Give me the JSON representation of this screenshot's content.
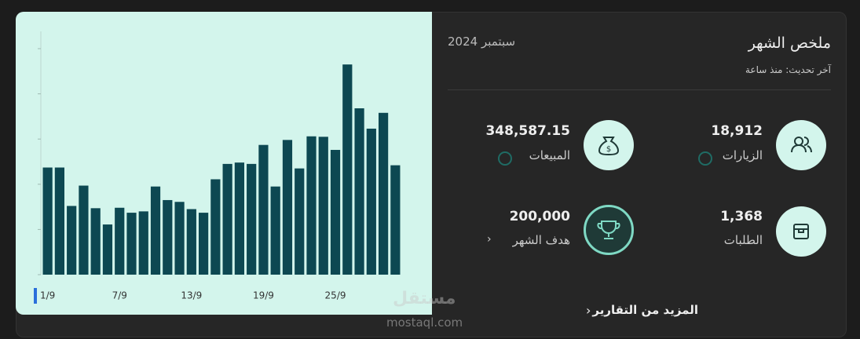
{
  "chart_data": {
    "type": "bar",
    "categories": [
      "1/9",
      null,
      null,
      null,
      null,
      null,
      "7/9",
      null,
      null,
      null,
      null,
      null,
      "13/9",
      null,
      null,
      null,
      null,
      null,
      "19/9",
      null,
      null,
      null,
      null,
      null,
      "25/9",
      null,
      null,
      null,
      null,
      null
    ],
    "values": [
      2.37,
      2.37,
      1.52,
      1.97,
      1.47,
      1.11,
      1.48,
      1.37,
      1.4,
      1.95,
      1.65,
      1.61,
      1.45,
      1.37,
      2.11,
      2.45,
      2.48,
      2.45,
      2.87,
      1.95,
      2.98,
      2.35,
      3.06,
      3.05,
      2.76,
      4.65,
      3.68,
      3.23,
      3.58,
      2.42
    ],
    "color": "#0d4852",
    "ylim": [
      0,
      5
    ],
    "yticks": [
      0,
      1,
      2,
      3,
      4,
      5
    ]
  },
  "summary": {
    "title": "ملخص الشهر",
    "updated": "آخر تحديث: منذ ساعة",
    "month": "سبتمبر 2024",
    "stats": [
      {
        "value": "18,912",
        "label": "الزيارات"
      },
      {
        "value": "348,587.15",
        "label": "المبيعات"
      },
      {
        "value": "1,368",
        "label": "الطلبات"
      },
      {
        "value": "200,000",
        "label": "هدف الشهر"
      }
    ],
    "link": "المزيد من التقارير"
  },
  "watermark": {
    "brand": "مستقل",
    "site": "mostaql.com"
  }
}
